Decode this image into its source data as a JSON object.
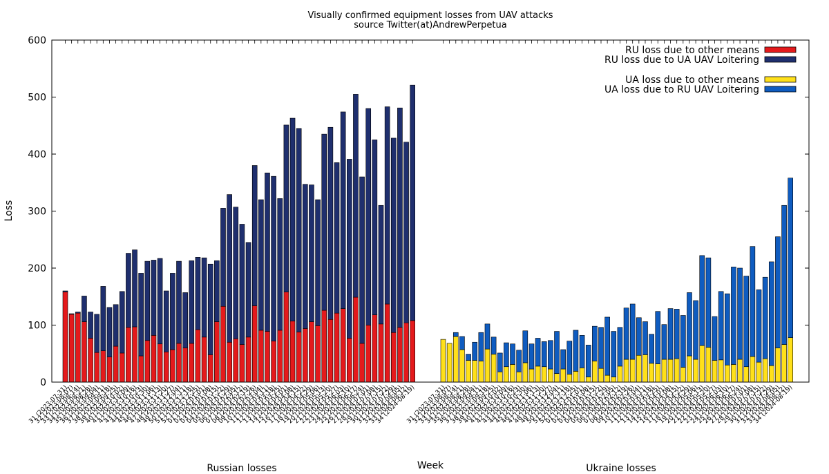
{
  "chart_data": {
    "type": "bar",
    "stacked": true,
    "title": "Visually confirmed equipment losses from UAV attacks",
    "subtitle": "source Twitter(at)AndrewPerpetua",
    "xlabel": "Week",
    "ylabel": "Loss",
    "ylim": [
      0,
      600
    ],
    "yticks": [
      0,
      100,
      200,
      300,
      400,
      500,
      600
    ],
    "grid": false,
    "legend_position": "top-right",
    "colors": {
      "ru_other": "#e41a1c",
      "ru_uav": "#1f2f6e",
      "ua_other": "#ffe01a",
      "ua_uav": "#0f5cc0"
    },
    "groups": [
      {
        "label": "Russian losses",
        "categories": [
          "31 (2023-07-31)",
          "32 (2023-08-07)",
          "33 (2023-08-14)",
          "34 (2023-08-21)",
          "35 (2023-08-28)",
          "36 (2023-09-04)",
          "37 (2023-09-11)",
          "38 (2023-09-18)",
          "39 (2023-09-25)",
          "40 (2023-10-02)",
          "41 (2023-10-09)",
          "42 (2023-10-16)",
          "43 (2023-10-23)",
          "44 (2023-10-30)",
          "45 (2023-11-06)",
          "46 (2023-11-13)",
          "47 (2023-11-20)",
          "48 (2023-11-27)",
          "49 (2023-12-04)",
          "50 (2023-12-11)",
          "51 (2023-12-18)",
          "52 (2023-12-25)",
          "01 (2024-01-01)",
          "02 (2024-01-08)",
          "03 (2024-01-15)",
          "04 (2024-01-22)",
          "05 (2024-01-29)",
          "06 (2024-02-05)",
          "07 (2024-02-12)",
          "08 (2024-02-19)",
          "09 (2024-02-26)",
          "10 (2024-03-04)",
          "11 (2024-03-11)",
          "12 (2024-03-18)",
          "13 (2024-03-25)",
          "14 (2024-04-01)",
          "15 (2024-04-08)",
          "16 (2024-04-15)",
          "17 (2024-04-22)",
          "18 (2024-04-29)",
          "19 (2024-05-06)",
          "20 (2024-05-13)",
          "21 (2024-05-20)",
          "22 (2024-05-27)",
          "23 (2024-06-03)",
          "24 (2024-06-10)",
          "25 (2024-06-17)",
          "26 (2024-06-24)",
          "27 (2024-07-01)",
          "28 (2024-07-08)",
          "29 (2024-07-15)",
          "30 (2024-07-22)",
          "31 (2024-07-29)",
          "32 (2024-08-05)",
          "33 (2024-08-12)",
          "34 (2024-08-19)"
        ],
        "series": [
          {
            "name": "RU loss due to other means",
            "color_key": "ru_other",
            "values": [
              158,
              119,
              121,
              106,
              77,
              52,
              55,
              44,
              63,
              51,
              96,
              97,
              46,
              73,
              82,
              67,
              53,
              57,
              68,
              60,
              68,
              92,
              79,
              48,
              106,
              133,
              70,
              76,
              66,
              79,
              134,
              91,
              89,
              72,
              91,
              158,
              107,
              88,
              94,
              106,
              99,
              126,
              110,
              121,
              129,
              77,
              149,
              68,
              100,
              118,
              102,
              137,
              87,
              96,
              104,
              108
            ]
          },
          {
            "name": "RU loss due to UA UAV Loitering",
            "color_key": "ru_uav",
            "values": [
              2,
              1,
              2,
              45,
              46,
              67,
              113,
              87,
              73,
              108,
              130,
              135,
              145,
              139,
              132,
              150,
              107,
              134,
              144,
              97,
              145,
              127,
              139,
              159,
              107,
              172,
              259,
              231,
              211,
              166,
              246,
              229,
              278,
              289,
              231,
              293,
              356,
              357,
              253,
              240,
              221,
              309,
              337,
              264,
              345,
              314,
              356,
              292,
              380,
              307,
              208,
              346,
              341,
              385,
              317,
              413
            ]
          }
        ]
      },
      {
        "label": "Ukraine losses",
        "categories": [
          "31 (2023-07-31)",
          "32 (2023-08-07)",
          "33 (2023-08-14)",
          "34 (2023-08-21)",
          "35 (2023-08-28)",
          "36 (2023-09-04)",
          "37 (2023-09-11)",
          "38 (2023-09-18)",
          "39 (2023-09-25)",
          "40 (2023-10-02)",
          "41 (2023-10-09)",
          "42 (2023-10-16)",
          "43 (2023-10-23)",
          "44 (2023-10-30)",
          "45 (2023-11-06)",
          "46 (2023-11-13)",
          "47 (2023-11-20)",
          "48 (2023-11-27)",
          "49 (2023-12-04)",
          "50 (2023-12-11)",
          "51 (2023-12-18)",
          "52 (2023-12-25)",
          "01 (2024-01-01)",
          "02 (2024-01-08)",
          "03 (2024-01-15)",
          "04 (2024-01-22)",
          "05 (2024-01-29)",
          "06 (2024-02-05)",
          "07 (2024-02-12)",
          "08 (2024-02-19)",
          "09 (2024-02-26)",
          "10 (2024-03-04)",
          "11 (2024-03-11)",
          "12 (2024-03-18)",
          "13 (2024-03-25)",
          "14 (2024-04-01)",
          "15 (2024-04-08)",
          "16 (2024-04-15)",
          "17 (2024-04-22)",
          "18 (2024-04-29)",
          "19 (2024-05-06)",
          "20 (2024-05-13)",
          "21 (2024-05-20)",
          "22 (2024-05-27)",
          "23 (2024-06-03)",
          "24 (2024-06-10)",
          "25 (2024-06-17)",
          "26 (2024-06-24)",
          "27 (2024-07-01)",
          "28 (2024-07-08)",
          "29 (2024-07-15)",
          "30 (2024-07-22)",
          "31 (2024-07-29)",
          "32 (2024-08-05)",
          "33 (2024-08-12)",
          "34 (2024-08-19)"
        ],
        "series": [
          {
            "name": "UA loss due to other means",
            "color_key": "ua_other",
            "values": [
              75,
              68,
              80,
              57,
              38,
              38,
              37,
              58,
              49,
              18,
              27,
              31,
              18,
              34,
              23,
              28,
              27,
              23,
              15,
              23,
              14,
              19,
              25,
              9,
              37,
              24,
              12,
              9,
              28,
              40,
              40,
              47,
              48,
              33,
              32,
              40,
              40,
              41,
              26,
              46,
              40,
              64,
              61,
              38,
              39,
              30,
              31,
              40,
              27,
              45,
              35,
              41,
              29,
              60,
              66,
              78
            ]
          },
          {
            "name": "UA loss due to RU UAV Loitering",
            "color_key": "ua_uav",
            "values": [
              0,
              0,
              7,
              23,
              11,
              32,
              50,
              44,
              30,
              33,
              42,
              36,
              38,
              56,
              44,
              49,
              44,
              50,
              74,
              34,
              58,
              72,
              57,
              56,
              61,
              72,
              102,
              80,
              68,
              90,
              97,
              66,
              58,
              51,
              92,
              61,
              89,
              87,
              91,
              111,
              103,
              158,
              157,
              77,
              120,
              125,
              171,
              160,
              159,
              193,
              127,
              143,
              182,
              195,
              244,
              280
            ]
          }
        ]
      }
    ]
  }
}
